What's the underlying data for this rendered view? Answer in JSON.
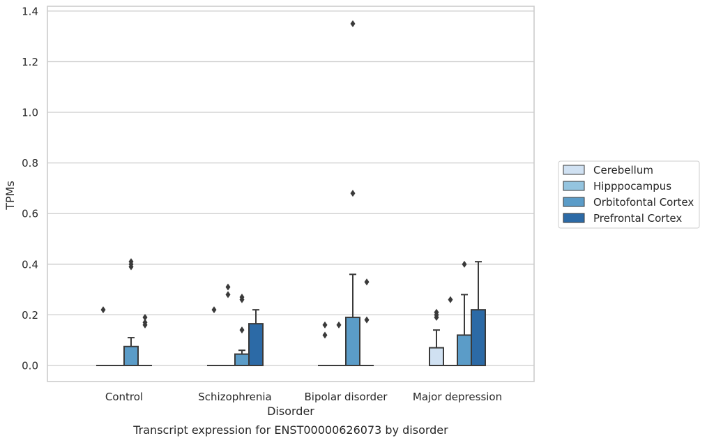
{
  "chart_data": {
    "type": "box",
    "title": "",
    "caption": "Transcript expression for ENST00000626073 by disorder",
    "xlabel": "Disorder",
    "ylabel": "TPMs",
    "ylim": [
      -0.065,
      1.42
    ],
    "yticks": [
      0.0,
      0.2,
      0.4,
      0.6,
      0.8,
      1.0,
      1.2,
      1.4
    ],
    "ytick_labels": [
      "0.0",
      "0.2",
      "0.4",
      "0.6",
      "0.8",
      "1.0",
      "1.2",
      "1.4"
    ],
    "grid": "horizontal",
    "legend_position": "right",
    "categories": [
      "Control",
      "Schizophrenia",
      "Bipolar disorder",
      "Major depression"
    ],
    "series": [
      {
        "name": "Cerebellum",
        "color": "#d0e1f2",
        "boxes": [
          {
            "q1": 0.0,
            "median": 0.0,
            "q3": 0.0,
            "whisker_low": 0.0,
            "whisker_high": 0.0,
            "outliers": [
              0.22
            ]
          },
          {
            "q1": 0.0,
            "median": 0.0,
            "q3": 0.0,
            "whisker_low": 0.0,
            "whisker_high": 0.0,
            "outliers": [
              0.22
            ]
          },
          {
            "q1": 0.0,
            "median": 0.0,
            "q3": 0.0,
            "whisker_low": 0.0,
            "whisker_high": 0.0,
            "outliers": [
              0.12,
              0.16
            ]
          },
          {
            "q1": 0.0,
            "median": 0.0,
            "q3": 0.07,
            "whisker_low": 0.0,
            "whisker_high": 0.14,
            "outliers": [
              0.19,
              0.2,
              0.21
            ]
          }
        ]
      },
      {
        "name": "Hipppocampus",
        "color": "#94c4df",
        "boxes": [
          {
            "q1": 0.0,
            "median": 0.0,
            "q3": 0.0,
            "whisker_low": 0.0,
            "whisker_high": 0.0,
            "outliers": []
          },
          {
            "q1": 0.0,
            "median": 0.0,
            "q3": 0.0,
            "whisker_low": 0.0,
            "whisker_high": 0.0,
            "outliers": [
              0.28,
              0.31
            ]
          },
          {
            "q1": 0.0,
            "median": 0.0,
            "q3": 0.0,
            "whisker_low": 0.0,
            "whisker_high": 0.0,
            "outliers": [
              0.16
            ]
          },
          {
            "q1": 0.0,
            "median": 0.0,
            "q3": 0.0,
            "whisker_low": 0.0,
            "whisker_high": 0.0,
            "outliers": [
              0.26
            ]
          }
        ]
      },
      {
        "name": "Orbitofontal Cortex",
        "color": "#5b9cc8",
        "boxes": [
          {
            "q1": 0.0,
            "median": 0.0,
            "q3": 0.075,
            "whisker_low": 0.0,
            "whisker_high": 0.11,
            "outliers": [
              0.39,
              0.4,
              0.41
            ]
          },
          {
            "q1": 0.0,
            "median": 0.0,
            "q3": 0.045,
            "whisker_low": 0.0,
            "whisker_high": 0.06,
            "outliers": [
              0.14,
              0.26,
              0.27
            ]
          },
          {
            "q1": 0.0,
            "median": 0.0,
            "q3": 0.19,
            "whisker_low": 0.0,
            "whisker_high": 0.36,
            "outliers": [
              0.68,
              1.35
            ]
          },
          {
            "q1": 0.0,
            "median": 0.0,
            "q3": 0.12,
            "whisker_low": 0.0,
            "whisker_high": 0.28,
            "outliers": [
              0.4
            ]
          }
        ]
      },
      {
        "name": "Prefrontal Cortex",
        "color": "#2c6aa6",
        "boxes": [
          {
            "q1": 0.0,
            "median": 0.0,
            "q3": 0.0,
            "whisker_low": 0.0,
            "whisker_high": 0.0,
            "outliers": [
              0.16,
              0.17,
              0.19
            ]
          },
          {
            "q1": 0.0,
            "median": 0.0,
            "q3": 0.165,
            "whisker_low": 0.0,
            "whisker_high": 0.22,
            "outliers": []
          },
          {
            "q1": 0.0,
            "median": 0.0,
            "q3": 0.0,
            "whisker_low": 0.0,
            "whisker_high": 0.0,
            "outliers": [
              0.18,
              0.33
            ]
          },
          {
            "q1": 0.0,
            "median": 0.0,
            "q3": 0.22,
            "whisker_low": 0.0,
            "whisker_high": 0.41,
            "outliers": []
          }
        ]
      }
    ]
  }
}
